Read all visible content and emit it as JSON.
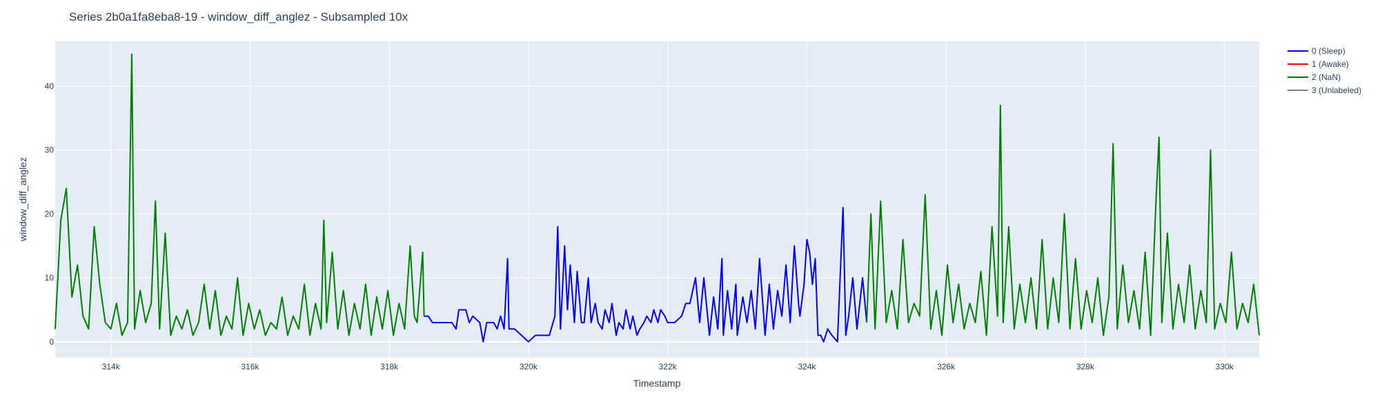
{
  "chart_data": {
    "type": "line",
    "title": "Series 2b0a1fa8eba8-19 - window_diff_anglez - Subsampled 10x",
    "xlabel": "Timestamp",
    "ylabel": "window_diff_anglez",
    "xlim": [
      313200,
      330500
    ],
    "ylim": [
      -2.5,
      47
    ],
    "x_ticks": [
      {
        "value": 314000,
        "label": "314k"
      },
      {
        "value": 316000,
        "label": "316k"
      },
      {
        "value": 318000,
        "label": "318k"
      },
      {
        "value": 320000,
        "label": "320k"
      },
      {
        "value": 322000,
        "label": "322k"
      },
      {
        "value": 324000,
        "label": "324k"
      },
      {
        "value": 326000,
        "label": "326k"
      },
      {
        "value": 328000,
        "label": "328k"
      },
      {
        "value": 330000,
        "label": "330k"
      }
    ],
    "y_ticks": [
      {
        "value": 0,
        "label": "0"
      },
      {
        "value": 10,
        "label": "10"
      },
      {
        "value": 20,
        "label": "20"
      },
      {
        "value": 30,
        "label": "30"
      },
      {
        "value": 40,
        "label": "40"
      }
    ],
    "grid": true,
    "legend_position": "top-right",
    "legend": [
      {
        "name": "0 (Sleep)",
        "color": "#0000ff"
      },
      {
        "name": "1 (Awake)",
        "color": "#ff0000"
      },
      {
        "name": "2 (NaN)",
        "color": "#008000"
      },
      {
        "name": "3 (Unlabeled)",
        "color": "#808080"
      }
    ],
    "series": [
      {
        "name": "2 (NaN)",
        "color": "#008000",
        "x": [
          313200,
          313280,
          313360,
          313440,
          313520,
          313600,
          313680,
          313760,
          313840,
          313920,
          314000,
          314080,
          314160,
          314240,
          314300,
          314340,
          314420,
          314500,
          314580,
          314640,
          314700,
          314780,
          314860,
          314940,
          315020,
          315100,
          315180,
          315260,
          315340,
          315420,
          315500,
          315580,
          315660,
          315740,
          315820,
          315900,
          315980,
          316060,
          316140,
          316220,
          316300,
          316380,
          316460,
          316540,
          316620,
          316700,
          316780,
          316860,
          316940,
          317020,
          317060,
          317100,
          317180,
          317260,
          317340,
          317420,
          317500,
          317580,
          317660,
          317740,
          317820,
          317900,
          317980,
          318060,
          318140,
          318220,
          318300,
          318360,
          318400,
          318480,
          318500
        ],
        "y": [
          2,
          19,
          24,
          7,
          12,
          4,
          2,
          18,
          9,
          3,
          2,
          6,
          1,
          3,
          45,
          2,
          8,
          3,
          6,
          22,
          2,
          17,
          1,
          4,
          2,
          5,
          1,
          3,
          9,
          2,
          8,
          1,
          4,
          2,
          10,
          1,
          6,
          2,
          5,
          1,
          3,
          2,
          7,
          1,
          4,
          2,
          9,
          1,
          6,
          2,
          19,
          3,
          14,
          2,
          8,
          1,
          6,
          2,
          9,
          1,
          7,
          2,
          8,
          1,
          6,
          2,
          15,
          4,
          3,
          14,
          4
        ]
      },
      {
        "name": "0 (Sleep)",
        "color": "#0000ff",
        "x": [
          318500,
          318560,
          318620,
          318700,
          318800,
          318900,
          318960,
          319000,
          319100,
          319150,
          319200,
          319300,
          319350,
          319400,
          319500,
          319550,
          319600,
          319650,
          319700,
          319720,
          319800,
          319900,
          320000,
          320100,
          320200,
          320300,
          320380,
          320420,
          320460,
          320520,
          320560,
          320600,
          320660,
          320700,
          320760,
          320800,
          320860,
          320900,
          320960,
          321000,
          321060,
          321100,
          321160,
          321200,
          321260,
          321300,
          321360,
          321400,
          321460,
          321500,
          321560,
          321600,
          321660,
          321700,
          321760,
          321800,
          321860,
          321900,
          321960,
          322000,
          322100,
          322200,
          322260,
          322320,
          322400,
          322460,
          322520,
          322600,
          322660,
          322720,
          322780,
          322800,
          322860,
          322920,
          322980,
          323000,
          323080,
          323140,
          323200,
          323260,
          323320,
          323400,
          323460,
          323520,
          323580,
          323640,
          323700,
          323760,
          323820,
          323880,
          323900,
          323960,
          324000,
          324040,
          324080,
          324120,
          324160,
          324200,
          324240,
          324300,
          324360,
          324440,
          324520,
          324560,
          324600,
          324660,
          324720,
          324800,
          324860
        ],
        "y": [
          4,
          4,
          3,
          3,
          3,
          3,
          2,
          5,
          5,
          3,
          4,
          3,
          0,
          3,
          3,
          2,
          4,
          2,
          13,
          2,
          2,
          1,
          0,
          1,
          1,
          1,
          4,
          18,
          2,
          15,
          5,
          12,
          3,
          11,
          3,
          3,
          10,
          3,
          6,
          3,
          2,
          5,
          3,
          6,
          1,
          3,
          2,
          5,
          2,
          4,
          1,
          2,
          3,
          4,
          3,
          5,
          3,
          5,
          4,
          3,
          3,
          4,
          6,
          6,
          10,
          3,
          10,
          1,
          7,
          2,
          13,
          1,
          8,
          2,
          9,
          1,
          7,
          3,
          8,
          2,
          13,
          1,
          9,
          2,
          8,
          4,
          12,
          3,
          15,
          6,
          4,
          9,
          16,
          14,
          9,
          13,
          1,
          1,
          0,
          2,
          1,
          0,
          21,
          1,
          4,
          10,
          2,
          10,
          3
        ]
      },
      {
        "name": "2 (NaN)",
        "color": "#008000",
        "x": [
          324860,
          324920,
          324980,
          325060,
          325140,
          325220,
          325300,
          325380,
          325460,
          325540,
          325620,
          325700,
          325780,
          325860,
          325940,
          326020,
          326100,
          326180,
          326260,
          326340,
          326420,
          326500,
          326580,
          326660,
          326740,
          326780,
          326820,
          326900,
          326980,
          327060,
          327140,
          327220,
          327300,
          327380,
          327460,
          327540,
          327620,
          327700,
          327780,
          327860,
          327940,
          328020,
          328100,
          328180,
          328260,
          328340,
          328400,
          328460,
          328540,
          328620,
          328700,
          328780,
          328860,
          328940,
          329020,
          329060,
          329100,
          329180,
          329260,
          329340,
          329420,
          329500,
          329580,
          329660,
          329740,
          329800,
          329860,
          329940,
          330020,
          330100,
          330180,
          330260,
          330340,
          330420,
          330500
        ],
        "y": [
          3,
          20,
          2,
          22,
          3,
          8,
          2,
          16,
          3,
          6,
          4,
          23,
          2,
          8,
          1,
          12,
          3,
          9,
          2,
          6,
          3,
          11,
          1,
          18,
          4,
          37,
          3,
          18,
          2,
          9,
          3,
          10,
          2,
          16,
          2,
          10,
          3,
          20,
          2,
          13,
          2,
          8,
          3,
          10,
          1,
          7,
          31,
          2,
          12,
          3,
          8,
          2,
          14,
          1,
          23,
          32,
          3,
          17,
          2,
          9,
          3,
          12,
          2,
          8,
          3,
          30,
          2,
          6,
          3,
          14,
          2,
          6,
          3,
          9,
          1
        ]
      }
    ]
  }
}
